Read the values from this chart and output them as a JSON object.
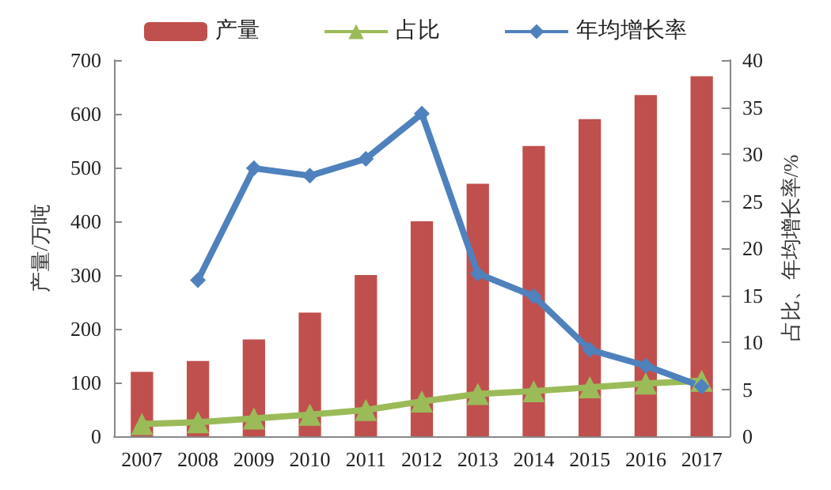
{
  "chart_data": {
    "type": "bar",
    "categories": [
      "2007",
      "2008",
      "2009",
      "2010",
      "2011",
      "2012",
      "2013",
      "2014",
      "2015",
      "2016",
      "2017"
    ],
    "ylabel": "产量/万吨",
    "y2label": "占比、年均增长率/%",
    "series": [
      {
        "name": "产量",
        "color": "#c0504d",
        "values": [
          120,
          140,
          180,
          230,
          300,
          400,
          470,
          540,
          590,
          635,
          670
        ]
      },
      {
        "name": "占比",
        "type": "line",
        "axis": "y2",
        "color": "#9bbb59",
        "marker": "triangle",
        "values": [
          1.3,
          1.5,
          1.9,
          2.3,
          2.8,
          3.7,
          4.5,
          4.8,
          5.2,
          5.6,
          5.9
        ]
      },
      {
        "name": "年均增长率",
        "type": "line",
        "axis": "y2",
        "color": "#4f81bd",
        "marker": "diamond",
        "values": [
          null,
          16.6,
          28.5,
          27.7,
          29.5,
          34.3,
          17.3,
          14.9,
          9.2,
          7.5,
          5.3
        ]
      }
    ],
    "ylim": [
      0,
      700
    ],
    "yticks": [
      0,
      100,
      200,
      300,
      400,
      500,
      600,
      700
    ],
    "y2lim": [
      0,
      40
    ],
    "y2ticks": [
      0,
      5,
      10,
      15,
      20,
      25,
      30,
      35,
      40
    ],
    "grid": false,
    "legend": "top"
  }
}
